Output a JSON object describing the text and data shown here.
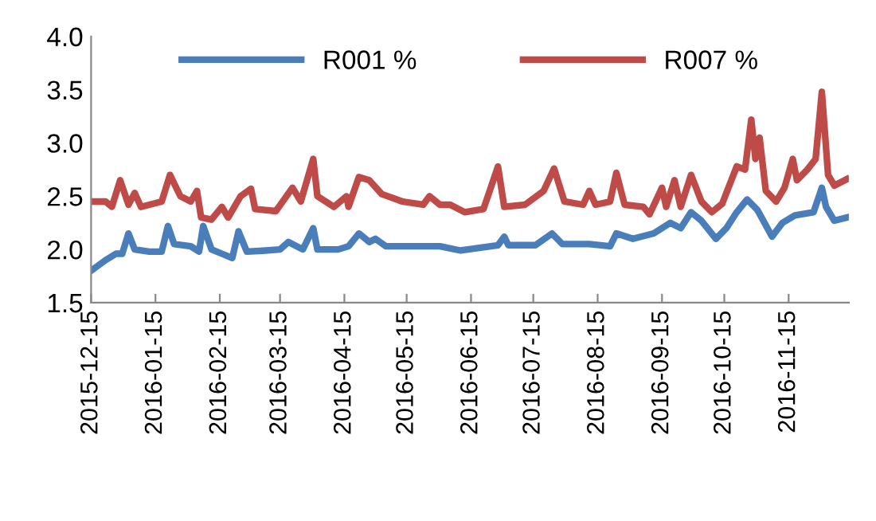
{
  "chart_data": {
    "type": "line",
    "xlim": [
      "2015-12-15",
      "2016-12-14"
    ],
    "xticks": [
      "2015-12-15",
      "2016-01-15",
      "2016-02-15",
      "2016-03-15",
      "2016-04-15",
      "2016-05-15",
      "2016-06-15",
      "2016-07-15",
      "2016-08-15",
      "2016-09-15",
      "2016-10-15",
      "2016-11-15"
    ],
    "ylim": [
      1.5,
      4.0
    ],
    "yticks": [
      1.5,
      {
        "value": 2,
        "label": "2.0"
      },
      2.5,
      {
        "value": 3,
        "label": "3.0"
      },
      3.5,
      {
        "value": 4,
        "label": "4.0"
      }
    ],
    "grid": false,
    "legend": "top",
    "marker": "none",
    "line_style": "solid",
    "series": [
      {
        "name": "R001 %",
        "color": "#4a7ebb",
        "x": [
          "2015-12-15",
          "2015-12-22",
          "2015-12-27",
          "2015-12-30",
          "2016-01-02",
          "2016-01-05",
          "2016-01-12",
          "2016-01-18",
          "2016-01-21",
          "2016-01-24",
          "2016-02-01",
          "2016-02-05",
          "2016-02-07",
          "2016-02-11",
          "2016-02-16",
          "2016-02-21",
          "2016-02-24",
          "2016-02-28",
          "2016-03-08",
          "2016-03-15",
          "2016-03-19",
          "2016-03-26",
          "2016-03-31",
          "2016-04-02",
          "2016-04-12",
          "2016-04-17",
          "2016-04-22",
          "2016-04-27",
          "2016-04-30",
          "2016-05-05",
          "2016-05-31",
          "2016-06-10",
          "2016-06-28",
          "2016-07-01",
          "2016-07-03",
          "2016-07-16",
          "2016-07-24",
          "2016-07-29",
          "2016-08-11",
          "2016-08-21",
          "2016-08-24",
          "2016-09-01",
          "2016-09-11",
          "2016-09-19",
          "2016-09-24",
          "2016-09-29",
          "2016-10-04",
          "2016-10-11",
          "2016-10-16",
          "2016-10-21",
          "2016-10-26",
          "2016-10-31",
          "2016-11-07",
          "2016-11-12",
          "2016-11-18",
          "2016-11-27",
          "2016-12-01",
          "2016-12-03",
          "2016-12-07",
          "2016-12-13"
        ],
        "values": [
          1.8,
          1.9,
          1.96,
          1.96,
          2.15,
          2.0,
          1.98,
          1.98,
          2.22,
          2.05,
          2.03,
          1.98,
          2.22,
          2.0,
          1.96,
          1.92,
          2.17,
          1.98,
          1.99,
          2.0,
          2.07,
          2.0,
          2.2,
          2.0,
          2.0,
          2.03,
          2.15,
          2.07,
          2.1,
          2.03,
          2.03,
          1.99,
          2.04,
          2.12,
          2.04,
          2.04,
          2.15,
          2.05,
          2.05,
          2.03,
          2.15,
          2.1,
          2.15,
          2.25,
          2.2,
          2.35,
          2.27,
          2.1,
          2.2,
          2.35,
          2.47,
          2.37,
          2.12,
          2.25,
          2.32,
          2.35,
          2.58,
          2.4,
          2.27,
          2.3
        ]
      },
      {
        "name": "R007 %",
        "color": "#be4b48",
        "x": [
          "2015-12-15",
          "2015-12-22",
          "2015-12-25",
          "2015-12-29",
          "2016-01-02",
          "2016-01-05",
          "2016-01-08",
          "2016-01-18",
          "2016-01-22",
          "2016-01-27",
          "2016-02-01",
          "2016-02-04",
          "2016-02-06",
          "2016-02-11",
          "2016-02-16",
          "2016-02-19",
          "2016-02-25",
          "2016-03-01",
          "2016-03-03",
          "2016-03-13",
          "2016-03-21",
          "2016-03-25",
          "2016-03-31",
          "2016-04-02",
          "2016-04-10",
          "2016-04-16",
          "2016-04-17",
          "2016-04-22",
          "2016-04-27",
          "2016-05-03",
          "2016-05-13",
          "2016-05-23",
          "2016-05-26",
          "2016-05-31",
          "2016-06-05",
          "2016-06-12",
          "2016-06-21",
          "2016-06-24",
          "2016-06-28",
          "2016-07-01",
          "2016-07-11",
          "2016-07-20",
          "2016-07-25",
          "2016-07-30",
          "2016-08-08",
          "2016-08-11",
          "2016-08-14",
          "2016-08-21",
          "2016-08-24",
          "2016-08-28",
          "2016-09-06",
          "2016-09-09",
          "2016-09-15",
          "2016-09-17",
          "2016-09-21",
          "2016-09-24",
          "2016-09-29",
          "2016-10-04",
          "2016-10-09",
          "2016-10-14",
          "2016-10-21",
          "2016-10-25",
          "2016-10-28",
          "2016-10-30",
          "2016-11-01",
          "2016-11-04",
          "2016-11-09",
          "2016-11-13",
          "2016-11-17",
          "2016-11-19",
          "2016-11-24",
          "2016-11-28",
          "2016-12-01",
          "2016-12-04",
          "2016-12-07",
          "2016-12-13"
        ],
        "values": [
          2.45,
          2.45,
          2.4,
          2.65,
          2.42,
          2.53,
          2.4,
          2.45,
          2.7,
          2.5,
          2.45,
          2.55,
          2.3,
          2.28,
          2.4,
          2.3,
          2.5,
          2.57,
          2.38,
          2.36,
          2.58,
          2.45,
          2.85,
          2.5,
          2.4,
          2.5,
          2.4,
          2.68,
          2.65,
          2.52,
          2.45,
          2.42,
          2.5,
          2.42,
          2.42,
          2.35,
          2.38,
          2.55,
          2.78,
          2.4,
          2.42,
          2.55,
          2.76,
          2.45,
          2.42,
          2.55,
          2.42,
          2.45,
          2.72,
          2.42,
          2.4,
          2.33,
          2.58,
          2.4,
          2.65,
          2.4,
          2.7,
          2.45,
          2.35,
          2.43,
          2.78,
          2.75,
          3.22,
          2.85,
          3.05,
          2.55,
          2.45,
          2.58,
          2.85,
          2.65,
          2.75,
          2.85,
          3.48,
          2.7,
          2.6,
          2.66
        ]
      }
    ]
  }
}
